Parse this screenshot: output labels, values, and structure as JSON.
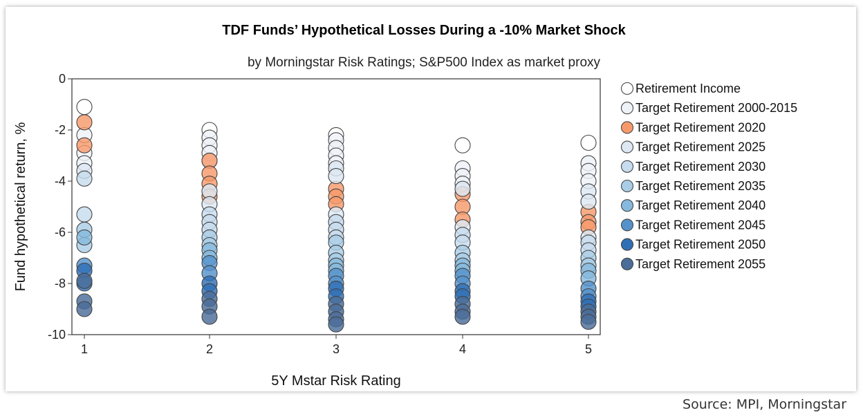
{
  "chart_data": {
    "type": "scatter",
    "title": "TDF Funds’ Hypothetical Losses During a -10% Market Shock",
    "subtitle": "by Morningstar Risk Ratings; S&P500 Index as market proxy",
    "xlabel": "5Y Mstar Risk Rating",
    "ylabel": "Fund hypothetical return, %",
    "xlim": [
      1,
      5
    ],
    "ylim": [
      -10,
      0
    ],
    "x_ticks": [
      "1",
      "2",
      "3",
      "4",
      "5"
    ],
    "y_ticks": [
      "0",
      "-2",
      "-4",
      "-6",
      "-8",
      "-10"
    ],
    "legend_position": "right",
    "series": [
      {
        "name": "Retirement Income",
        "color": "#ffffff",
        "points": [
          [
            1,
            -1.1
          ],
          [
            2,
            -2.0
          ],
          [
            3,
            -2.2
          ],
          [
            4,
            -2.6
          ],
          [
            5,
            -2.5
          ]
        ]
      },
      {
        "name": "Target Retirement 2000-2015",
        "color": "#eef3f8",
        "points": [
          [
            1,
            -2.2
          ],
          [
            1,
            -2.9
          ],
          [
            1,
            -3.3
          ],
          [
            2,
            -2.3
          ],
          [
            2,
            -2.6
          ],
          [
            2,
            -2.9
          ],
          [
            2,
            -3.2
          ],
          [
            3,
            -2.4
          ],
          [
            3,
            -2.7
          ],
          [
            3,
            -3.0
          ],
          [
            3,
            -3.3
          ],
          [
            4,
            -3.5
          ],
          [
            4,
            -3.8
          ],
          [
            4,
            -4.1
          ],
          [
            5,
            -3.3
          ],
          [
            5,
            -3.6
          ],
          [
            5,
            -4.0
          ]
        ]
      },
      {
        "name": "Target Retirement 2020",
        "color": "#f79a6b",
        "points": [
          [
            1,
            -1.7
          ],
          [
            1,
            -2.6
          ],
          [
            2,
            -3.2
          ],
          [
            2,
            -3.7
          ],
          [
            2,
            -4.1
          ],
          [
            2,
            -4.6
          ],
          [
            3,
            -4.3
          ],
          [
            3,
            -4.6
          ],
          [
            3,
            -4.9
          ],
          [
            4,
            -4.5
          ],
          [
            4,
            -5.0
          ],
          [
            4,
            -5.5
          ],
          [
            5,
            -5.2
          ],
          [
            5,
            -5.6
          ],
          [
            5,
            -5.8
          ]
        ]
      },
      {
        "name": "Target Retirement 2025",
        "color": "#dde8f3",
        "points": [
          [
            1,
            -3.6
          ],
          [
            2,
            -4.4
          ],
          [
            2,
            -4.9
          ],
          [
            3,
            -3.5
          ],
          [
            3,
            -3.8
          ],
          [
            3,
            -5.3
          ],
          [
            4,
            -4.3
          ],
          [
            4,
            -5.8
          ],
          [
            5,
            -4.4
          ],
          [
            5,
            -4.8
          ],
          [
            5,
            -6.2
          ]
        ]
      },
      {
        "name": "Target Retirement 2030",
        "color": "#c7dcee",
        "points": [
          [
            1,
            -3.9
          ],
          [
            1,
            -5.3
          ],
          [
            2,
            -5.3
          ],
          [
            2,
            -5.6
          ],
          [
            2,
            -5.9
          ],
          [
            3,
            -5.6
          ],
          [
            3,
            -5.9
          ],
          [
            3,
            -6.2
          ],
          [
            4,
            -6.1
          ],
          [
            4,
            -6.4
          ],
          [
            5,
            -6.4
          ],
          [
            5,
            -6.7
          ]
        ]
      },
      {
        "name": "Target Retirement 2035",
        "color": "#a9cde6",
        "points": [
          [
            1,
            -5.9
          ],
          [
            1,
            -6.5
          ],
          [
            2,
            -6.2
          ],
          [
            2,
            -6.5
          ],
          [
            3,
            -6.4
          ],
          [
            3,
            -6.8
          ],
          [
            3,
            -7.1
          ],
          [
            4,
            -6.8
          ],
          [
            4,
            -7.1
          ],
          [
            5,
            -7.0
          ],
          [
            5,
            -7.3
          ]
        ]
      },
      {
        "name": "Target Retirement 2040",
        "color": "#86b9dd",
        "points": [
          [
            1,
            -6.2
          ],
          [
            2,
            -6.7
          ],
          [
            2,
            -7.0
          ],
          [
            3,
            -7.3
          ],
          [
            3,
            -7.5
          ],
          [
            4,
            -7.3
          ],
          [
            4,
            -7.5
          ],
          [
            5,
            -7.5
          ],
          [
            5,
            -7.8
          ]
        ]
      },
      {
        "name": "Target Retirement 2045",
        "color": "#5592cc",
        "points": [
          [
            1,
            -7.3
          ],
          [
            2,
            -7.2
          ],
          [
            2,
            -7.6
          ],
          [
            3,
            -7.7
          ],
          [
            3,
            -8.0
          ],
          [
            4,
            -7.7
          ],
          [
            4,
            -8.0
          ],
          [
            5,
            -8.2
          ],
          [
            5,
            -8.5
          ]
        ]
      },
      {
        "name": "Target Retirement 2050",
        "color": "#2f6fb6",
        "points": [
          [
            1,
            -7.5
          ],
          [
            1,
            -8.0
          ],
          [
            2,
            -8.0
          ],
          [
            2,
            -8.3
          ],
          [
            3,
            -8.2
          ],
          [
            3,
            -8.5
          ],
          [
            4,
            -8.3
          ],
          [
            4,
            -8.5
          ],
          [
            5,
            -8.7
          ],
          [
            5,
            -8.9
          ]
        ]
      },
      {
        "name": "Target Retirement 2055",
        "color": "#4a6d99",
        "points": [
          [
            1,
            -7.9
          ],
          [
            1,
            -8.7
          ],
          [
            1,
            -9.0
          ],
          [
            2,
            -8.6
          ],
          [
            2,
            -8.9
          ],
          [
            2,
            -9.3
          ],
          [
            3,
            -8.8
          ],
          [
            3,
            -9.1
          ],
          [
            3,
            -9.4
          ],
          [
            3,
            -9.6
          ],
          [
            4,
            -8.8
          ],
          [
            4,
            -9.1
          ],
          [
            4,
            -9.3
          ],
          [
            5,
            -9.1
          ],
          [
            5,
            -9.3
          ],
          [
            5,
            -9.5
          ]
        ]
      }
    ]
  },
  "footer": {
    "source": "Source: MPI, Morningstar"
  }
}
